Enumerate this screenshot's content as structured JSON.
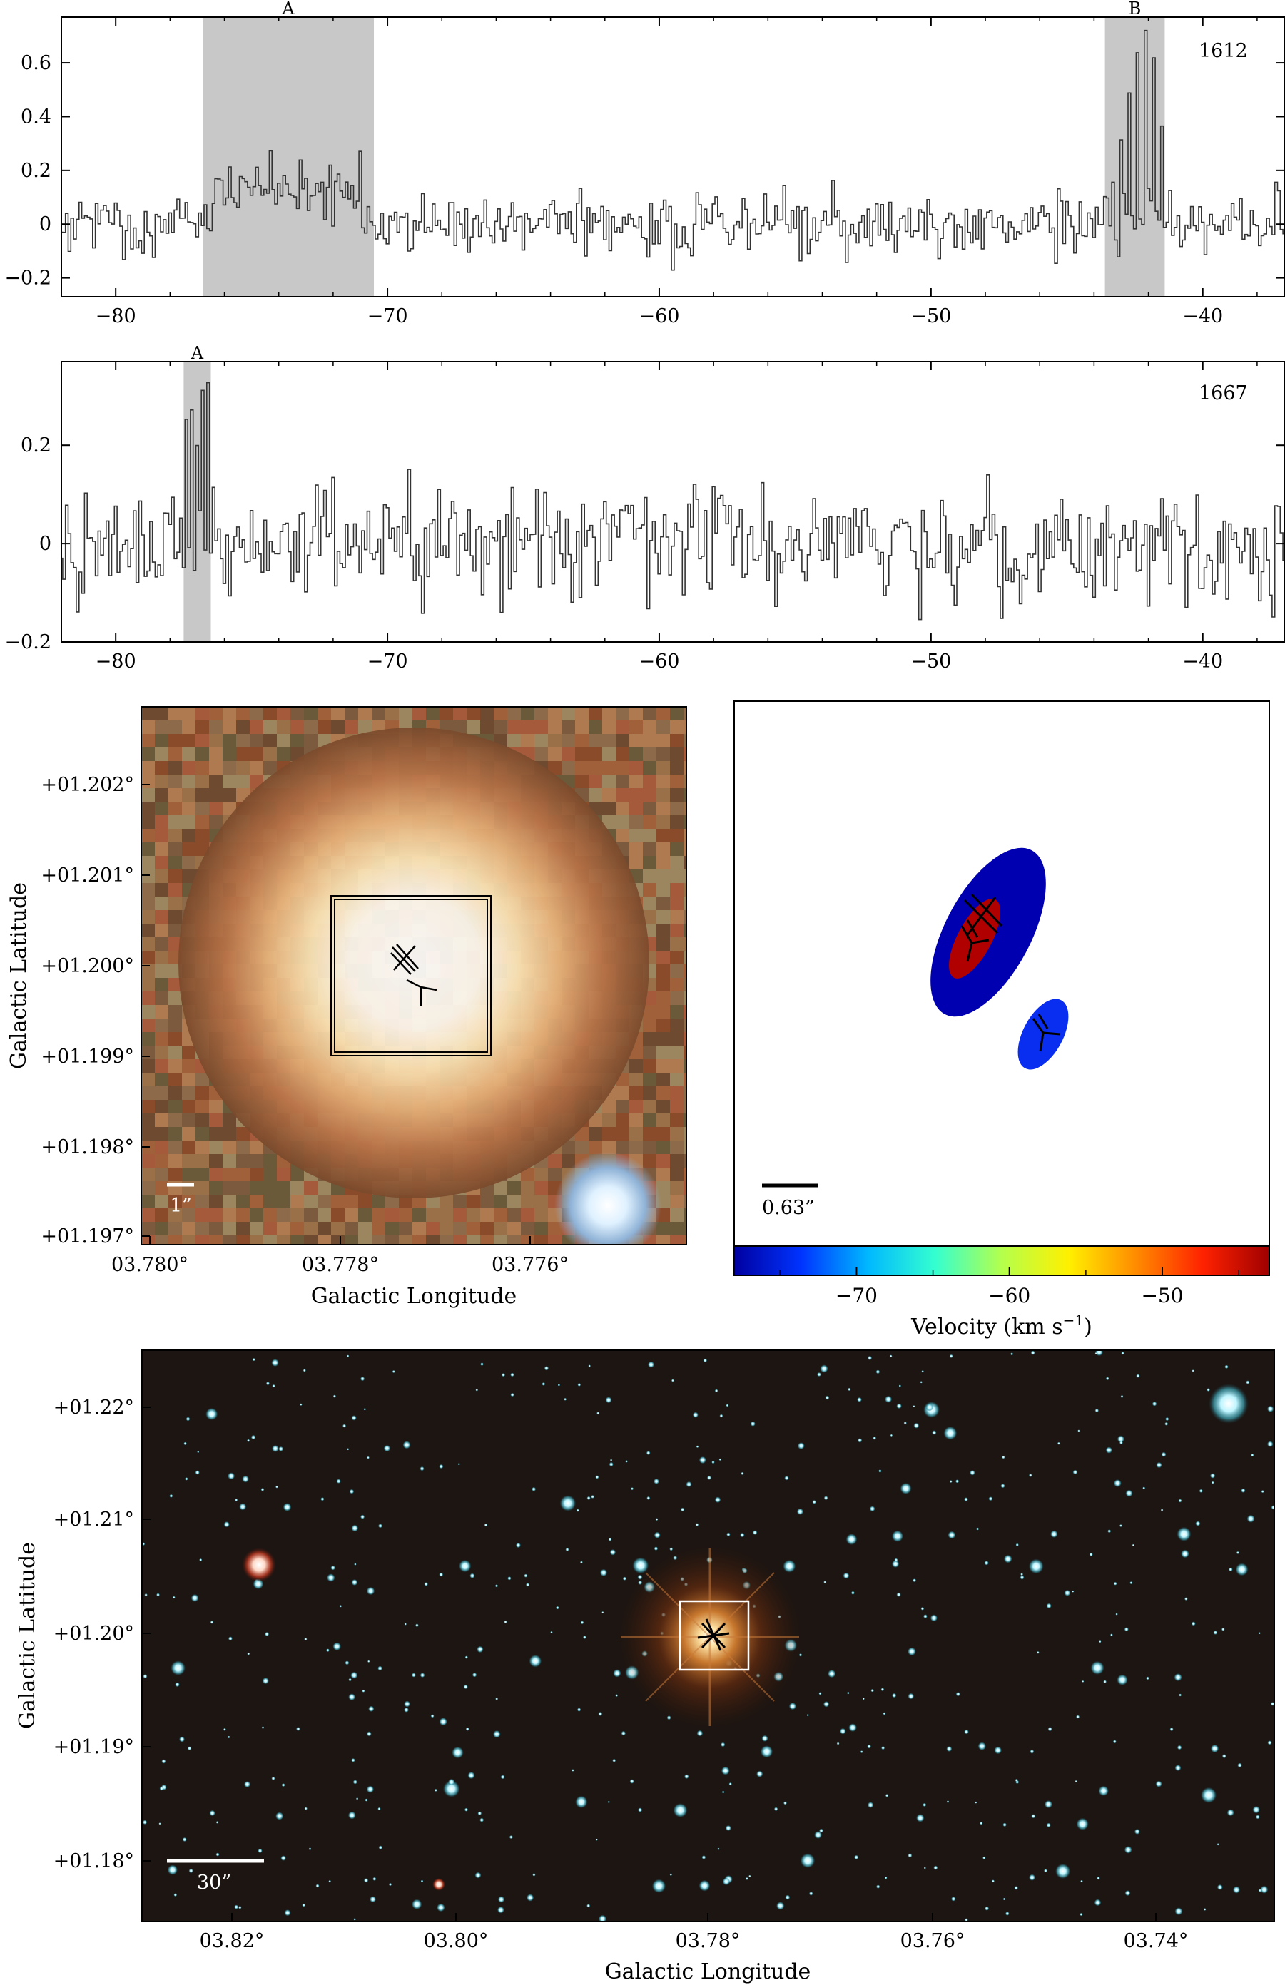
{
  "chart_data": [
    {
      "type": "line",
      "panel": "spectrum-1612",
      "annotation": "1612",
      "xlim": [
        -82,
        -37
      ],
      "ylim": [
        -0.27,
        0.77
      ],
      "x_ticks": [
        -80,
        -70,
        -60,
        -50,
        -40
      ],
      "x_tick_labels": [
        "−80",
        "−70",
        "−60",
        "−50",
        "−40"
      ],
      "y_ticks": [
        -0.2,
        0,
        0.2,
        0.4,
        0.6
      ],
      "y_tick_labels": [
        "−0.2",
        "0",
        "0.2",
        "0.4",
        "0.6"
      ],
      "regions": [
        {
          "label": "A",
          "x0": -76.8,
          "x1": -70.5
        },
        {
          "label": "B",
          "x0": -43.6,
          "x1": -41.4
        }
      ],
      "series": [
        {
          "noise": 0.055,
          "features": [
            {
              "x0": -76.5,
              "x1": -71.0,
              "level": 0.13
            },
            {
              "x": -43.3,
              "y": 0.15
            },
            {
              "x": -43.0,
              "y": 0.3
            },
            {
              "x": -42.7,
              "y": 0.48
            },
            {
              "x": -42.4,
              "y": 0.62
            },
            {
              "x": -42.1,
              "y": 0.71
            },
            {
              "x": -41.8,
              "y": 0.62
            },
            {
              "x": -41.5,
              "y": 0.38
            },
            {
              "x": -41.2,
              "y": 0.1
            }
          ]
        }
      ]
    },
    {
      "type": "line",
      "panel": "spectrum-1667",
      "annotation": "1667",
      "xlim": [
        -82,
        -37
      ],
      "ylim": [
        -0.2,
        0.37
      ],
      "x_ticks": [
        -80,
        -70,
        -60,
        -50,
        -40
      ],
      "x_tick_labels": [
        "−80",
        "−70",
        "−60",
        "−50",
        "−40"
      ],
      "y_ticks": [
        -0.2,
        0,
        0.2
      ],
      "y_tick_labels": [
        "−0.2",
        "0",
        "0.2"
      ],
      "regions": [
        {
          "label": "A",
          "x0": -77.5,
          "x1": -76.5
        }
      ],
      "series": [
        {
          "noise": 0.06,
          "features": [
            {
              "x": -77.6,
              "y": 0.06
            },
            {
              "x": -77.4,
              "y": 0.24
            },
            {
              "x": -77.2,
              "y": 0.25
            },
            {
              "x": -77.0,
              "y": 0.21
            },
            {
              "x": -76.8,
              "y": 0.32
            },
            {
              "x": -76.6,
              "y": 0.33
            },
            {
              "x": -76.4,
              "y": 0.12
            }
          ]
        }
      ]
    },
    {
      "type": "heatmap",
      "panel": "zoom-image",
      "xlabel": "Galactic Longitude",
      "ylabel": "Galactic Latitude",
      "x_tick_labels": [
        "03.780°",
        "03.778°",
        "03.776°"
      ],
      "y_tick_labels": [
        "+01.202°",
        "+01.201°",
        "+01.200°",
        "+01.199°",
        "+01.198°",
        "+01.197°"
      ],
      "scale_bar": "1”"
    },
    {
      "type": "scatter",
      "panel": "velocity-map",
      "scale_bar": "0.63”",
      "colorbar": {
        "label": "Velocity (km s",
        "label_sup": "−1",
        "label_end": ")",
        "range": [
          -78,
          -43
        ],
        "ticks": [
          -70,
          -60,
          -50
        ],
        "tick_labels": [
          "−70",
          "−60",
          "−50"
        ],
        "colors": [
          "#0000a0",
          "#0033ff",
          "#00b8ff",
          "#33ffd0",
          "#b4ff4c",
          "#fff000",
          "#ff8c00",
          "#ff2200",
          "#a00000"
        ]
      },
      "components": [
        {
          "velocity": -76.5,
          "color": "#0000b0"
        },
        {
          "velocity": -42.5,
          "color": "#b00000"
        },
        {
          "velocity": -75.0,
          "color": "#0a2ef0"
        }
      ]
    },
    {
      "type": "heatmap",
      "panel": "wide-field",
      "xlabel": "Galactic Longitude",
      "ylabel": "Galactic Latitude",
      "x_tick_labels": [
        "03.82°",
        "03.80°",
        "03.78°",
        "03.76°",
        "03.74°"
      ],
      "y_tick_labels": [
        "+01.22°",
        "+01.21°",
        "+01.20°",
        "+01.19°",
        "+01.18°"
      ],
      "scale_bar": "30”"
    }
  ]
}
